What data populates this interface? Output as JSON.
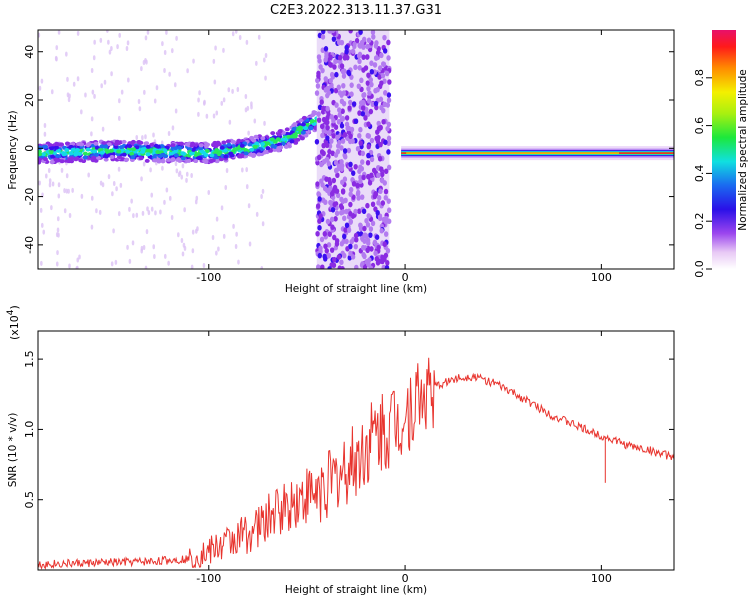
{
  "figure": {
    "title": "C2E3.2022.313.11.37.G31"
  },
  "chart_data": [
    {
      "type": "heatmap",
      "title": "C2E3.2022.313.11.37.G31",
      "xlabel": "Height of straight line (km)",
      "ylabel": "Frequency (Hz)",
      "xlim": [
        -187,
        137
      ],
      "ylim": [
        -50,
        49
      ],
      "x_ticks": [
        -100,
        0,
        100
      ],
      "y_ticks": [
        -40,
        -20,
        0,
        20,
        40
      ],
      "colorbar": {
        "label": "Normalized spectral amplitude",
        "range": [
          0,
          1
        ],
        "ticks": [
          "0.0",
          "0.2",
          "0.4",
          "0.6",
          "0.8"
        ]
      },
      "ridge": {
        "x": [
          -187,
          -150,
          -100,
          -80,
          -60,
          -45,
          -43
        ],
        "frequency_hz": [
          -2,
          -1,
          -2,
          0,
          4,
          12,
          14
        ],
        "noisy_band_x": [
          -45,
          -8
        ],
        "strong_signal_x": [
          -2,
          137
        ],
        "strong_signal_frequency_hz": -2
      }
    },
    {
      "type": "line",
      "xlabel": "Height of straight line (km)",
      "ylabel": "SNR (10 * v/v)",
      "y_multiplier": "(x10",
      "y_multiplier_exp": "4",
      "y_multiplier_close": ")",
      "xlim": [
        -187,
        137
      ],
      "ylim": [
        0,
        1.7
      ],
      "x_ticks": [
        -100,
        0,
        100
      ],
      "y_ticks": [
        "0.5",
        "1.0",
        "1.5"
      ],
      "series": [
        {
          "color": "#e8342e",
          "x": [
            -187,
            -160,
            -130,
            -110,
            -100,
            -90,
            -75,
            -65,
            -55,
            -45,
            -35,
            -25,
            -15,
            -5,
            0,
            5,
            15,
            25,
            35,
            45,
            55,
            65,
            75,
            85,
            95,
            105,
            115,
            125,
            137
          ],
          "y": [
            0.04,
            0.05,
            0.06,
            0.08,
            0.13,
            0.2,
            0.3,
            0.42,
            0.5,
            0.55,
            0.65,
            0.78,
            0.95,
            1.05,
            1.1,
            1.2,
            1.3,
            1.36,
            1.38,
            1.33,
            1.26,
            1.18,
            1.1,
            1.04,
            0.98,
            0.93,
            0.88,
            0.85,
            0.8
          ]
        }
      ]
    }
  ]
}
